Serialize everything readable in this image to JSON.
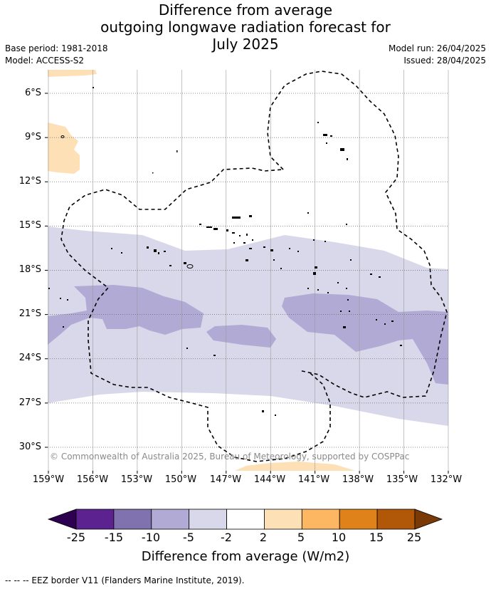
{
  "title": {
    "line1": "Difference from average",
    "line2": "outgoing longwave radiation forecast for",
    "line3": "July 2025"
  },
  "meta": {
    "base_period": "Base period: 1981-2018",
    "model": "Model: ACCESS-S2",
    "model_run": "Model run: 26/04/2025",
    "issued": "Issued: 28/04/2025"
  },
  "map": {
    "lat_labels": [
      "6°S",
      "9°S",
      "12°S",
      "15°S",
      "18°S",
      "21°S",
      "24°S",
      "27°S",
      "30°S"
    ],
    "lon_labels": [
      "159°W",
      "156°W",
      "153°W",
      "150°W",
      "147°W",
      "144°W",
      "141°W",
      "138°W",
      "135°W",
      "132°W"
    ],
    "copyright": "© Commonwealth of Australia 2025, Bureau of Meteorology, supported by COSPPac",
    "colors": {
      "light_purple": "#d8d8ea",
      "medium_purple": "#b0aad4",
      "light_orange": "#fde0b6",
      "grid": "#9a9a9a",
      "eez_border": "#000000",
      "land": "#000000"
    }
  },
  "colorbar": {
    "ticks": [
      "-25",
      "-15",
      "-10",
      "-5",
      "-2",
      "2",
      "5",
      "10",
      "15",
      "25"
    ],
    "colors": [
      "#2d0050",
      "#5b2290",
      "#8072ae",
      "#b0aad4",
      "#d8d8ea",
      "#ffffff",
      "#fde0b6",
      "#fdb762",
      "#e0821a",
      "#b05808",
      "#7a3a07"
    ],
    "title": "Difference from average (W/m2)"
  },
  "legend_note": "--  --  -- EEZ border V11 (Flanders Marine Institute, 2019)."
}
